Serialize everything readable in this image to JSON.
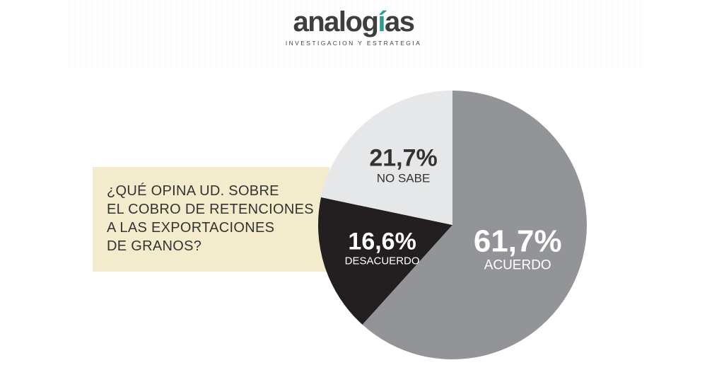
{
  "header": {
    "logo_text": "analogías",
    "tagline": "INVESTIGACION Y ESTRATEGIA",
    "colors": {
      "logo": "#3e3e3e",
      "accent": "#2a9d8f"
    }
  },
  "question": {
    "lines": [
      "¿QUÉ OPINA UD. SOBRE",
      "EL COBRO DE RETENCIONES",
      "A LAS EXPORTACIONES",
      "DE GRANOS?"
    ],
    "background": "#f2eccd"
  },
  "chart_data": {
    "type": "pie",
    "title": "¿QUÉ OPINA UD. SOBRE EL COBRO DE RETENCIONES A LAS EXPORTACIONES DE GRANOS?",
    "slices": [
      {
        "label": "ACUERDO",
        "value": 61.7,
        "display": "61,7%",
        "color": "#929497",
        "text_color": "#ffffff"
      },
      {
        "label": "DESACUERDO",
        "value": 16.6,
        "display": "16,6%",
        "color": "#231f20",
        "text_color": "#ffffff"
      },
      {
        "label": "NO SABE",
        "value": 21.7,
        "display": "21,7%",
        "color": "#e6e7e8",
        "text_color": "#333333"
      }
    ],
    "start": "top",
    "direction": "clockwise"
  }
}
